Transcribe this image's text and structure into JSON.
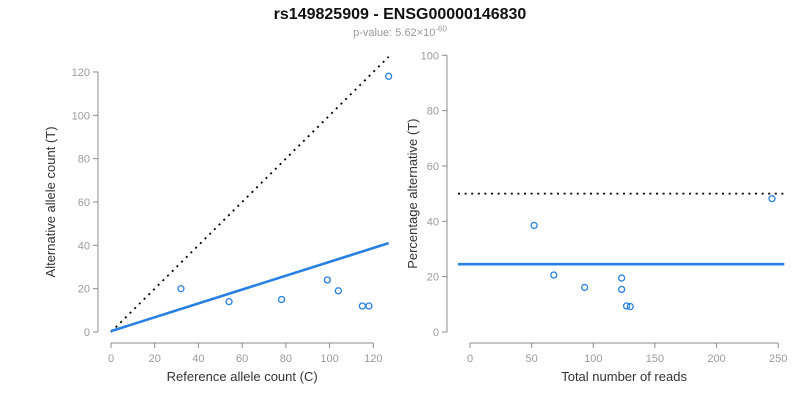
{
  "header": {
    "title": "rs149825909 - ENSG00000146830",
    "pvalue_prefix": "p-value: 5.62×10",
    "pvalue_exponent": "-60"
  },
  "colors": {
    "accent_blue": "#2780E3",
    "dotted_black": "#000000",
    "axis_line": "#8C8C8C",
    "tick_label": "#9B9B9B",
    "axis_title": "#333333",
    "title_color": "#111111",
    "subtitle_color": "#999999",
    "background": "#FFFFFF"
  },
  "chart_data": [
    {
      "type": "scatter",
      "name": "allele-counts",
      "xlabel": "Reference allele count (C)",
      "ylabel": "Alternative allele count (T)",
      "xlim": [
        0,
        127
      ],
      "ylim": [
        0,
        127
      ],
      "xticks": [
        0,
        20,
        40,
        60,
        80,
        100,
        120
      ],
      "yticks": [
        0,
        20,
        40,
        60,
        80,
        100,
        120
      ],
      "grid": false,
      "legend": "none",
      "points": [
        [
          32,
          20
        ],
        [
          54,
          14
        ],
        [
          78,
          15
        ],
        [
          99,
          24
        ],
        [
          104,
          19
        ],
        [
          115,
          12
        ],
        [
          118,
          12
        ],
        [
          127,
          118
        ]
      ],
      "lines": [
        {
          "name": "identity-line",
          "style": "dotted",
          "color": "#000000",
          "x1": 0,
          "y1": 0,
          "x2": 127,
          "y2": 127
        },
        {
          "name": "fit-line",
          "style": "solid",
          "color": "#2780E3",
          "x1": 0,
          "y1": 0.4,
          "x2": 127,
          "y2": 41
        }
      ]
    },
    {
      "type": "scatter",
      "name": "percentage-vs-reads",
      "xlabel": "Total number of reads",
      "ylabel": "Percentage alternative (T)",
      "xlim": [
        0,
        255
      ],
      "ylim": [
        0,
        100
      ],
      "xticks": [
        0,
        50,
        100,
        150,
        200,
        250
      ],
      "yticks": [
        0,
        20,
        40,
        60,
        80,
        100
      ],
      "grid": false,
      "legend": "none",
      "points": [
        [
          52,
          38.5
        ],
        [
          68,
          20.6
        ],
        [
          93,
          16.1
        ],
        [
          123,
          19.5
        ],
        [
          123,
          15.4
        ],
        [
          127,
          9.4
        ],
        [
          130,
          9.2
        ],
        [
          245,
          48.2
        ]
      ],
      "lines": [
        {
          "name": "fifty-percent-line",
          "style": "dotted",
          "color": "#000000",
          "y": 50
        },
        {
          "name": "mean-percentage-line",
          "style": "solid",
          "color": "#2780E3",
          "y": 24.5
        }
      ]
    }
  ]
}
